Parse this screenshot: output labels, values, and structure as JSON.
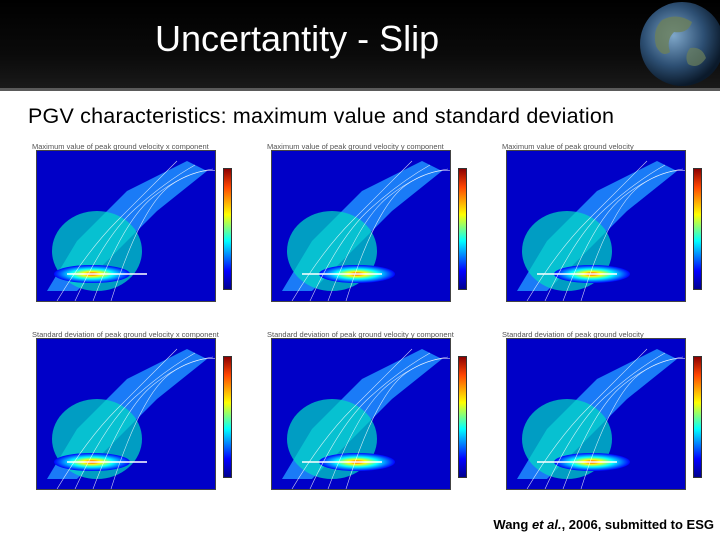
{
  "slide": {
    "title": "Uncertantity - Slip",
    "subtitle": "PGV characteristics: maximum value and standard deviation",
    "credit": {
      "author": "Wang",
      "etal": "et al.",
      "rest": ", 2006, submitted to ESG"
    }
  },
  "panels": [
    {
      "caption": "Maximum value of peak ground velocity x component"
    },
    {
      "caption": "Maximum value of peak ground velocity y component"
    },
    {
      "caption": "Maximum value of peak ground velocity"
    },
    {
      "caption": "Standard deviation of peak ground velocity x component"
    },
    {
      "caption": "Standard deviation of peak ground velocity y component"
    },
    {
      "caption": "Standard deviation of peak ground velocity"
    }
  ],
  "colors": {
    "header_bg": "#000000",
    "title_text": "#ffffff",
    "body_bg": "#ffffff"
  }
}
